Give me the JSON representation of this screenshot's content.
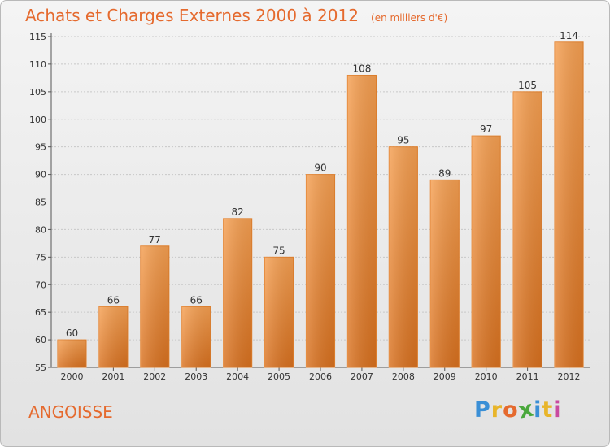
{
  "chart_data": {
    "type": "bar",
    "title": "Achats et Charges Externes 2000 à 2012",
    "subtitle": "(en milliers d'€)",
    "categories": [
      "2000",
      "2001",
      "2002",
      "2003",
      "2004",
      "2005",
      "2006",
      "2007",
      "2008",
      "2009",
      "2010",
      "2011",
      "2012"
    ],
    "values": [
      60,
      66,
      77,
      66,
      82,
      75,
      90,
      108,
      95,
      89,
      97,
      105,
      114
    ],
    "ylim": [
      55,
      115
    ],
    "yticks": [
      55,
      60,
      65,
      70,
      75,
      80,
      85,
      90,
      95,
      100,
      105,
      110,
      115
    ],
    "grid": true,
    "bar_color": "#f0913f"
  },
  "commune": "ANGOISSE",
  "logo": {
    "letters": [
      "P",
      "r",
      "o",
      "x",
      "i",
      "t",
      "i"
    ],
    "colors": [
      "#3a8fd6",
      "#e8b52a",
      "#e56a2e",
      "#4aa83c",
      "#3a8fd6",
      "#e8b52a",
      "#c94aa0"
    ]
  }
}
